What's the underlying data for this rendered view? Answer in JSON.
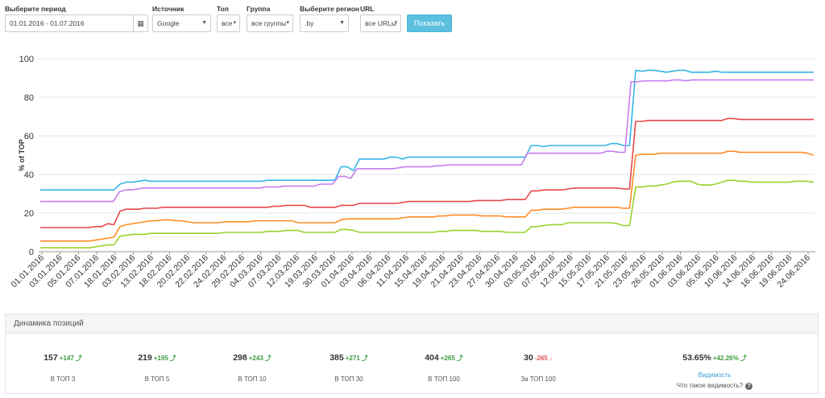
{
  "filters": {
    "period": {
      "label": "Выберите период",
      "value": "01.01.2016 - 01.07.2016",
      "icon": "calendar-icon"
    },
    "source": {
      "label": "Источник",
      "value": "Google"
    },
    "top": {
      "label": "Топ",
      "value": "все"
    },
    "group": {
      "label": "Группа",
      "value": "все группы"
    },
    "region": {
      "label": "Выберите регион",
      "value": ".by"
    },
    "url": {
      "label": "URL",
      "value": "все URLы"
    },
    "show_button": "Показать"
  },
  "chart_data": {
    "type": "line",
    "ylabel": "% of TOP",
    "xlabel": "",
    "ylim": [
      0,
      100
    ],
    "yticks": [
      0,
      20,
      40,
      60,
      80,
      100
    ],
    "grid": true,
    "x_ticks": [
      "01.01.2016",
      "03.01.2016",
      "05.01.2016",
      "07.01.2016",
      "18.01.2016",
      "03.02.2016",
      "13.02.2016",
      "18.02.2016",
      "20.02.2016",
      "22.02.2016",
      "24.02.2016",
      "29.02.2016",
      "04.03.2016",
      "07.03.2016",
      "12.03.2016",
      "19.03.2016",
      "30.03.2016",
      "01.04.2016",
      "03.04.2016",
      "06.04.2016",
      "11.04.2016",
      "15.04.2016",
      "19.04.2016",
      "21.04.2016",
      "23.04.2016",
      "27.04.2016",
      "30.04.2016",
      "03.05.2016",
      "07.05.2016",
      "12.05.2016",
      "15.05.2016",
      "17.05.2016",
      "21.05.2016",
      "23.05.2016",
      "26.05.2016",
      "01.06.2016",
      "03.06.2016",
      "05.06.2016",
      "10.06.2016",
      "14.06.2016",
      "16.06.2016",
      "19.06.2016",
      "24.06.2016"
    ],
    "series": [
      {
        "color": "#33b5e5",
        "values": [
          32,
          32,
          32,
          32,
          32,
          32,
          32,
          32,
          32,
          32,
          32,
          32,
          32,
          35,
          36,
          36,
          36.5,
          37,
          36.5,
          36.5,
          36.5,
          36.5,
          36.5,
          36.5,
          36.5,
          36.5,
          36.5,
          36.5,
          36.5,
          36.5,
          36.5,
          36.5,
          36.5,
          36.5,
          36.5,
          36.5,
          36.5,
          37,
          37,
          37,
          37,
          37,
          37,
          37,
          37,
          37,
          37,
          37,
          37,
          44,
          44,
          42,
          48,
          48,
          48,
          48,
          48,
          49,
          49,
          48,
          49,
          49,
          49,
          49,
          49,
          49,
          49,
          49,
          49,
          49,
          49,
          49,
          49,
          49,
          49,
          49,
          49,
          49,
          49,
          49,
          55,
          55,
          54.5,
          55,
          55,
          55,
          55,
          55,
          55,
          55,
          55,
          55,
          55,
          56,
          56,
          55,
          55,
          94,
          93.5,
          94,
          94,
          93.5,
          93,
          93.5,
          94,
          94,
          93,
          93,
          93,
          93,
          93.5,
          93,
          93,
          93,
          93,
          93,
          93,
          93,
          93,
          93,
          93,
          93,
          93,
          93,
          93,
          93,
          93
        ]
      },
      {
        "color": "#c57ef0",
        "values": [
          26,
          26,
          26,
          26,
          26,
          26,
          26,
          26,
          26,
          26,
          26,
          26,
          26,
          31,
          32,
          32,
          32.5,
          33,
          33,
          33,
          33,
          33,
          33,
          33,
          33,
          33,
          33,
          33,
          33,
          33,
          33,
          33,
          33,
          33,
          33,
          33,
          33,
          33.5,
          33.5,
          33.5,
          34,
          34,
          34,
          34,
          34,
          34,
          35,
          35,
          35,
          39,
          39,
          38,
          43,
          43,
          43,
          43,
          43,
          43,
          43,
          43.5,
          44,
          44,
          44,
          44,
          44,
          44.5,
          44.5,
          45,
          45,
          45,
          45,
          45,
          45,
          45,
          45,
          45,
          45,
          45,
          45,
          45,
          51,
          51,
          51,
          51,
          51,
          51,
          51,
          51,
          51,
          51,
          51,
          51,
          51,
          52,
          52,
          51.5,
          51.5,
          88,
          88,
          88.5,
          88.5,
          88.5,
          88.5,
          88.5,
          89,
          89,
          88.5,
          89,
          89,
          89,
          89,
          89,
          89,
          89,
          89,
          89,
          89,
          89,
          89,
          89,
          89,
          89,
          89,
          89,
          89,
          89,
          89,
          89
        ]
      },
      {
        "color": "#e8474b",
        "values": [
          12.5,
          12.5,
          12.5,
          12.5,
          12.5,
          12.5,
          12.5,
          12.5,
          12.5,
          13,
          13,
          14.5,
          14,
          21,
          22,
          22,
          22,
          22.5,
          22.5,
          22.5,
          23,
          23,
          23,
          23,
          23,
          23,
          23,
          23,
          23,
          23,
          23,
          23,
          23,
          23,
          23,
          23,
          23,
          23,
          23.5,
          23.5,
          24,
          24,
          24,
          24,
          23,
          23,
          23,
          23,
          23,
          24,
          24,
          24,
          25,
          25,
          25,
          25,
          25,
          25,
          25,
          25.5,
          26,
          26,
          26,
          26,
          26,
          26,
          26,
          26,
          26,
          26,
          26,
          26.5,
          26.5,
          26.5,
          26.5,
          26.5,
          27,
          27,
          27,
          27,
          31.5,
          31.5,
          32,
          32,
          32,
          32,
          32.5,
          33,
          33,
          33,
          33,
          33,
          33,
          33,
          33,
          32.5,
          32.5,
          67.5,
          67.5,
          68,
          68,
          68,
          68,
          68,
          68,
          68,
          68,
          68,
          68,
          68,
          68,
          68,
          69,
          69,
          68.5,
          68.5,
          68.5,
          68.5,
          68.5,
          68.5,
          68.5,
          68.5,
          68.5,
          68.5,
          68.5,
          68.5,
          68.5
        ]
      },
      {
        "color": "#ff8c28",
        "values": [
          5.5,
          5.5,
          5.5,
          5.5,
          5.5,
          5.5,
          5.5,
          5.5,
          5.5,
          6,
          6.5,
          7,
          7.5,
          13,
          14,
          14.5,
          15,
          15.5,
          16,
          16,
          16.5,
          16.5,
          16,
          16,
          15.5,
          15,
          15,
          15,
          15,
          15,
          15.5,
          15.5,
          15.5,
          15.5,
          15.5,
          16,
          16,
          16,
          16,
          16,
          16,
          16,
          15,
          15,
          15,
          15,
          15,
          15,
          15,
          16.5,
          17,
          17,
          17,
          17,
          17,
          17,
          17,
          17,
          17,
          17.5,
          18,
          18,
          18,
          18,
          18,
          18.5,
          18.5,
          19,
          19,
          19,
          19,
          19,
          18.5,
          18.5,
          18.5,
          18.5,
          18,
          18,
          18,
          18,
          21.5,
          21.5,
          22,
          22,
          22,
          22,
          22.5,
          23,
          23,
          23,
          23,
          23,
          23,
          23,
          23,
          22.5,
          22.5,
          50,
          50.5,
          50.5,
          50.5,
          51,
          51,
          51,
          51,
          51,
          51,
          51,
          51,
          51,
          51,
          51,
          52,
          52,
          51.5,
          51.5,
          51.5,
          51.5,
          51.5,
          51.5,
          51.5,
          51.5,
          51.5,
          51.5,
          51.5,
          51,
          50
        ]
      },
      {
        "color": "#99d22e",
        "values": [
          2,
          2,
          2,
          2,
          2,
          2,
          2,
          2,
          2,
          2.5,
          3,
          3.5,
          3.5,
          8,
          8.5,
          9,
          9,
          9,
          9.5,
          9.5,
          9.5,
          9.5,
          9.5,
          9.5,
          9.5,
          9.5,
          9.5,
          9.5,
          9.5,
          9.5,
          10,
          10,
          10,
          10,
          10,
          10,
          10,
          10.5,
          10.5,
          10.5,
          11,
          11,
          11,
          10,
          10,
          10,
          10,
          10,
          10,
          11.5,
          11.5,
          11,
          10,
          10,
          10,
          10,
          10,
          10,
          10,
          10,
          10,
          10,
          10,
          10,
          10,
          10.5,
          10.5,
          11,
          11,
          11,
          11,
          11,
          10.5,
          10.5,
          10.5,
          10.5,
          10,
          10,
          10,
          10,
          13,
          13,
          13.5,
          14,
          14,
          14,
          15,
          15,
          15,
          15,
          15,
          15,
          15,
          15,
          14.5,
          13.5,
          13.5,
          33.5,
          33.5,
          34,
          34,
          34.5,
          35,
          36,
          36.5,
          36.5,
          36.5,
          35,
          34.5,
          34.5,
          35,
          36,
          37,
          37,
          36.5,
          36.5,
          36,
          36,
          36,
          36,
          36,
          36,
          36,
          36.5,
          36.5,
          36.5,
          36
        ]
      }
    ]
  },
  "panel": {
    "title": "Динамика позиций",
    "stats": [
      {
        "value": "157",
        "delta": "+147",
        "dir": "up",
        "label": "В ТОП 3"
      },
      {
        "value": "219",
        "delta": "+195",
        "dir": "up",
        "label": "В ТОП 5"
      },
      {
        "value": "298",
        "delta": "+243",
        "dir": "up",
        "label": "В ТОП 10"
      },
      {
        "value": "385",
        "delta": "+271",
        "dir": "up",
        "label": "В ТОП 30"
      },
      {
        "value": "404",
        "delta": "+265",
        "dir": "up",
        "label": "В ТОП 100"
      },
      {
        "value": "30",
        "delta": "-265",
        "dir": "down",
        "label": "За ТОП 100"
      }
    ],
    "visibility": {
      "value": "53.65%",
      "delta": "+42.26%",
      "link": "Видимость",
      "question": "Что такое видимость?",
      "help_icon": "question-circle-icon"
    }
  }
}
